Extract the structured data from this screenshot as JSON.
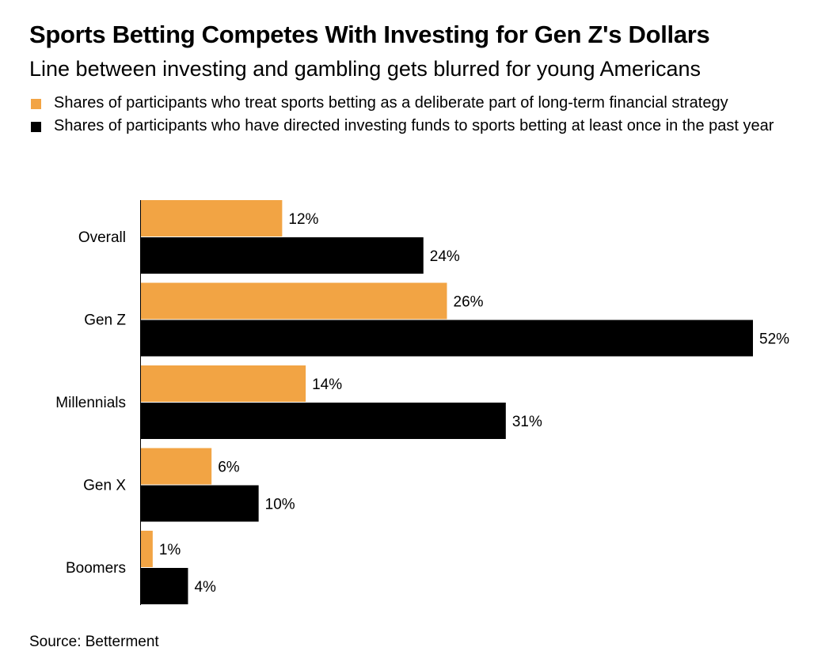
{
  "title": "Sports Betting Competes With Investing for Gen Z's Dollars",
  "subtitle": "Line between investing and gambling gets blurred for young Americans",
  "source": "Source: Betterment",
  "colors": {
    "series1": "#F2A444",
    "series2": "#000000"
  },
  "chart_data": {
    "type": "bar",
    "orientation": "horizontal",
    "categories": [
      "Overall",
      "Gen Z",
      "Millennials",
      "Gen X",
      "Boomers"
    ],
    "series": [
      {
        "name": "Shares of participants who treat sports betting as a deliberate part of long-term financial strategy",
        "values": [
          12,
          26,
          14,
          6,
          1
        ],
        "labels": [
          "12%",
          "26%",
          "14%",
          "6%",
          "1%"
        ]
      },
      {
        "name": "Shares of participants who have directed investing funds to sports betting at least once in the past year",
        "values": [
          24,
          52,
          31,
          10,
          4
        ],
        "labels": [
          "24%",
          "52%",
          "31%",
          "10%",
          "4%"
        ]
      }
    ],
    "xlim": [
      0,
      52
    ],
    "grid": false,
    "legend": "top"
  }
}
